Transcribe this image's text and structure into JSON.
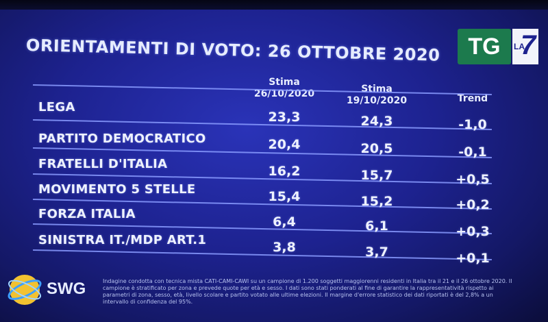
{
  "title": "ORIENTAMENTI DI VOTO: 26 OTTOBRE 2020",
  "logo": {
    "tg": "TG",
    "la": "LA",
    "seven": "7"
  },
  "headers": {
    "col1": "Stima\n26/10/2020",
    "col2": "Stima\n19/10/2020",
    "col3": "Trend"
  },
  "rows": [
    {
      "party": "LEGA",
      "stima_26": "23,3",
      "stima_19": "24,3",
      "trend": "-1,0"
    },
    {
      "party": "PARTITO DEMOCRATICO",
      "stima_26": "20,4",
      "stima_19": "20,5",
      "trend": "-0,1"
    },
    {
      "party": "FRATELLI D'ITALIA",
      "stima_26": "16,2",
      "stima_19": "15,7",
      "trend": "+0,5"
    },
    {
      "party": "MOVIMENTO 5 STELLE",
      "stima_26": "15,4",
      "stima_19": "15,2",
      "trend": "+0,2"
    },
    {
      "party": "FORZA ITALIA",
      "stima_26": "6,4",
      "stima_19": "6,1",
      "trend": "+0,3"
    },
    {
      "party": "SINISTRA IT./MDP ART.1",
      "stima_26": "3,8",
      "stima_19": "3,7",
      "trend": "+0,1"
    }
  ],
  "source": {
    "logo_text": "SWG",
    "note": "Indagine condotta con tecnica mista CATI-CAMI-CAWI su un campione di 1.200 soggetti maggiorenni residenti in Italia tra il 21 e il 26 ottobre 2020. Il campione è stratificato per zona e prevede quote per età e sesso. I dati sono stati ponderati al fine di garantire la rappresentatività rispetto ai parametri di zona, sesso, età, livello scolare e partito votato alle ultime elezioni. Il margine d'errore statistico dei dati riportati è del 2,8% a un intervallo di confidenza del 95%."
  },
  "colors": {
    "background": "#1d228f",
    "text": "#eef2ff",
    "rule": "#8a9bff",
    "tg_green": "#1c7a4d",
    "globe": "#f2c230"
  }
}
